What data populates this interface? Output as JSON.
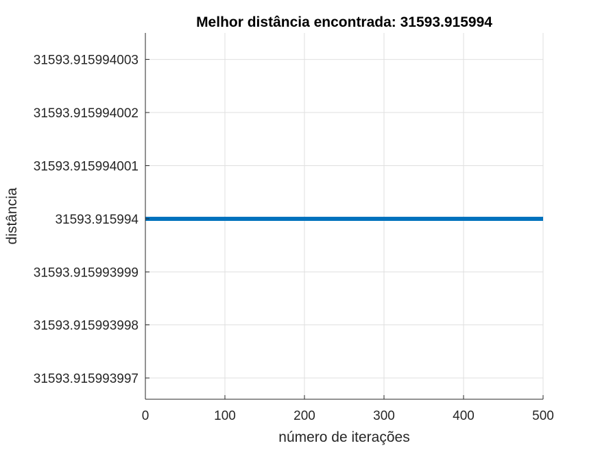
{
  "chart_data": {
    "type": "line",
    "title": "Melhor distância encontrada: 31593.915994",
    "xlabel": "número de iterações",
    "ylabel": "distância",
    "xlim": [
      0,
      500
    ],
    "ylim": [
      31593.9159939966,
      31593.9159940035
    ],
    "x_ticks": [
      0,
      100,
      200,
      300,
      400,
      500
    ],
    "x_tick_labels": [
      "0",
      "100",
      "200",
      "300",
      "400",
      "500"
    ],
    "y_ticks": [
      31593.915993997,
      31593.915993998,
      31593.915993999,
      31593.915994,
      31593.915994001,
      31593.915994002,
      31593.915994003
    ],
    "y_tick_labels": [
      "31593.915993997",
      "31593.915993998",
      "31593.915993999",
      "31593.915994",
      "31593.915994001",
      "31593.915994002",
      "31593.915994003"
    ],
    "grid": true,
    "series": [
      {
        "color": "#0072BD",
        "x": [
          0,
          500
        ],
        "y": [
          31593.915994,
          31593.915994
        ]
      }
    ]
  }
}
